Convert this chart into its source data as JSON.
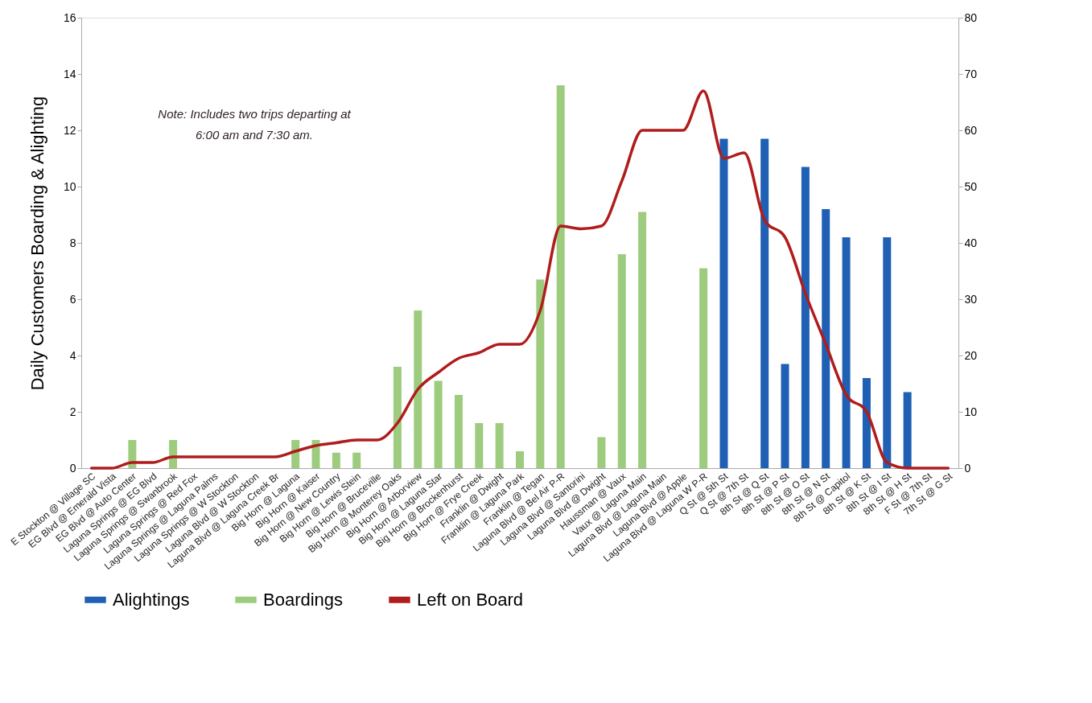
{
  "chart_data": {
    "type": "bar",
    "categories": [
      "E Stockton @ Village SC",
      "EG Blvd @ Emerald Vista",
      "EG Blvd @ Auto Center",
      "Laguna Springs @ EG Blvd",
      "Laguna Springs @ Swanbrook",
      "Laguna Springs @ Red Fox",
      "Laguna Springs @ Laguna Palms",
      "Laguna Springs @ W Stockton",
      "Laguna Blvd @ W Stockton",
      "Laguna Blvd @ Laguna Creek Br",
      "Big Horn @ Laguna",
      "Big Horn @ Kaiser",
      "Big Horn @ New Country",
      "Big Horn @ Lewis Stein",
      "Big Horn @ Bruceville",
      "Big Horn @ Monterey Oaks",
      "Big Horn @ Arborview",
      "Big Horn @ Laguna Star",
      "Big Horn @ Brockenhurst",
      "Big Horn @ Frye Creek",
      "Franklin @ Dwight",
      "Franklin @ Laguna Park",
      "Franklin @ Tegan",
      "Laguna Blvd @ Bel Air P-R",
      "Laguna Blvd @ Santorini",
      "Laguna Blvd @ Dwight",
      "Haussman @ Vaux",
      "Vaux @ Laguna Main",
      "Laguna Blvd @ Laguna Main",
      "Laguna Blvd @ Apple",
      "Laguna Blvd @ Laguna W P-R",
      "Q St @ 5th St",
      "Q St @ 7th St",
      "8th St @ Q St",
      "8th St @ P St",
      "8th St @ O St",
      "8th St @ N St",
      "8th St @ Capitol",
      "8th St @ K St",
      "8th St @ I St",
      "8th St @ H St",
      "F St @ 7th St",
      "7th St @ G St"
    ],
    "series": [
      {
        "name": "Alightings",
        "color": "#1f5fb4",
        "values": [
          null,
          null,
          null,
          null,
          null,
          null,
          null,
          null,
          null,
          null,
          null,
          null,
          null,
          null,
          null,
          null,
          null,
          null,
          null,
          null,
          null,
          null,
          null,
          null,
          null,
          null,
          null,
          null,
          null,
          null,
          null,
          11.7,
          null,
          11.7,
          3.7,
          10.7,
          9.2,
          8.2,
          3.2,
          8.2,
          2.7,
          null,
          null
        ]
      },
      {
        "name": "Boardings",
        "color": "#9dcc7e",
        "values": [
          null,
          null,
          1.0,
          null,
          1.0,
          null,
          null,
          null,
          null,
          null,
          1.0,
          1.0,
          0.55,
          0.55,
          null,
          3.6,
          5.6,
          3.1,
          2.6,
          1.6,
          1.6,
          0.6,
          6.7,
          13.6,
          null,
          1.1,
          7.6,
          9.1,
          null,
          null,
          7.1,
          null,
          null,
          null,
          null,
          null,
          null,
          null,
          null,
          null,
          null,
          null,
          null
        ]
      },
      {
        "name": "Left on Board",
        "type": "line",
        "axis": "y2",
        "color": "#b01c1c",
        "values": [
          0,
          0,
          1,
          1,
          2,
          2,
          2,
          2,
          2,
          2,
          3,
          4,
          4.5,
          5,
          5,
          8,
          14,
          17,
          19.5,
          20.5,
          22,
          22,
          28,
          43,
          42.5,
          43,
          51,
          60,
          60,
          60,
          67,
          55,
          56,
          44,
          41,
          31,
          22,
          13,
          10,
          1,
          0,
          0,
          0
        ]
      }
    ],
    "ylabel": "Daily Customers Boarding & Alighting",
    "ylim": [
      0,
      16
    ],
    "yticks": [
      0,
      2,
      4,
      6,
      8,
      10,
      12,
      14,
      16
    ],
    "y2lim": [
      0,
      80
    ],
    "y2ticks": [
      0,
      10,
      20,
      30,
      40,
      50,
      60,
      70,
      80
    ],
    "annotations": [
      "Note: Includes two trips departing at\n6:00 am and 7:30 am."
    ],
    "legend": "bottom",
    "grid": false,
    "line_style": "solid",
    "marker": "none"
  }
}
